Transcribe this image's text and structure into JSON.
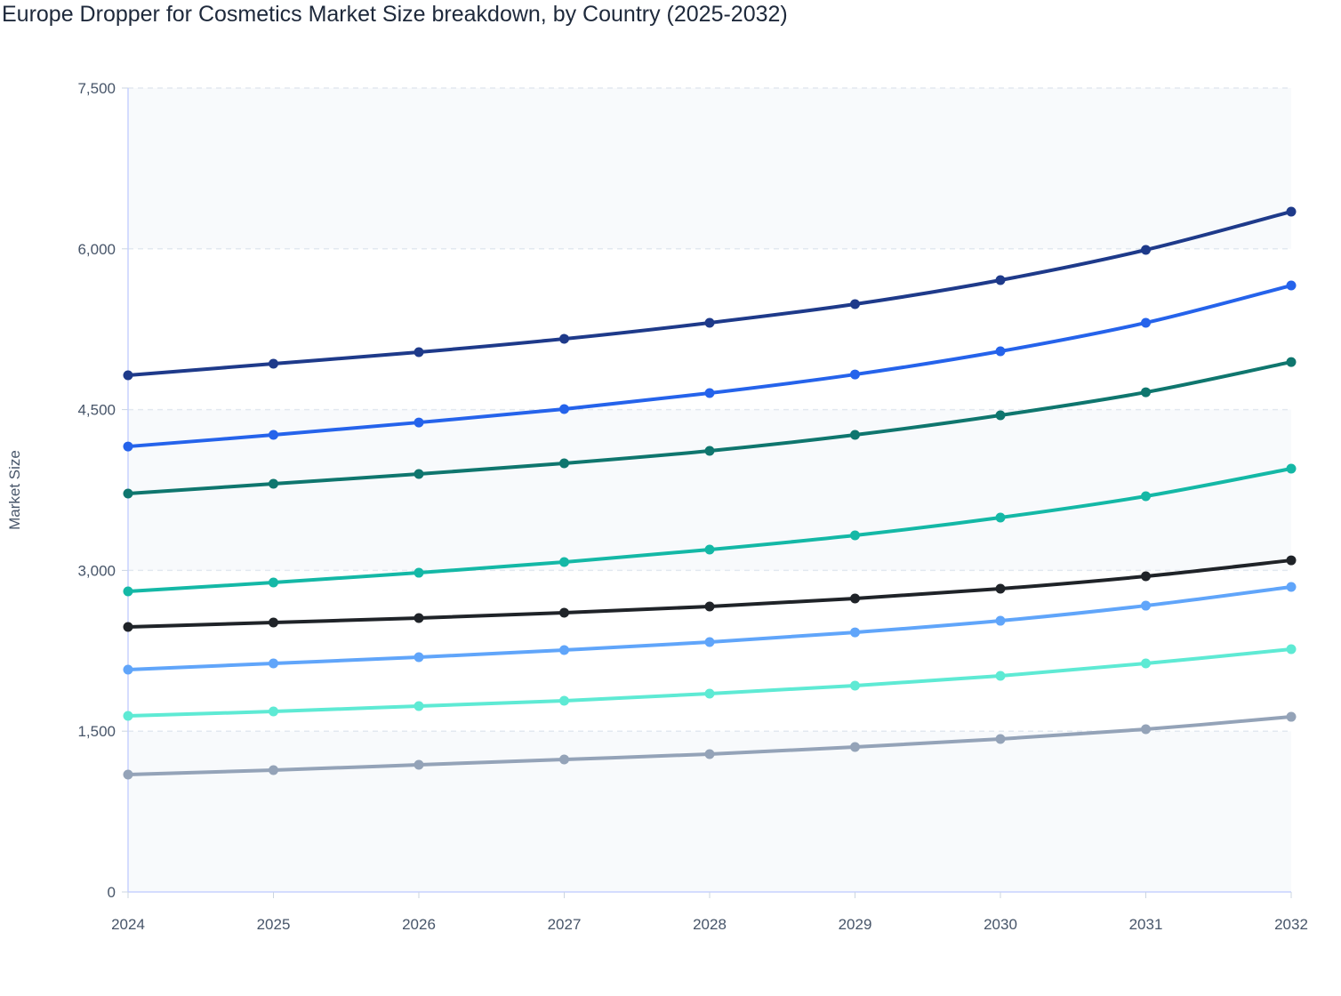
{
  "chart_data": {
    "type": "line",
    "title": "Europe Dropper for Cosmetics Market Size breakdown, by Country (2025-2032)",
    "xlabel": "",
    "ylabel": "Market Size",
    "x": [
      "2024",
      "2025",
      "2026",
      "2027",
      "2028",
      "2029",
      "2030",
      "2031",
      "2032"
    ],
    "ylim": [
      0,
      7500
    ],
    "yticks": [
      "0",
      "1,500",
      "3,000",
      "4,500",
      "6,000",
      "7,500"
    ],
    "ytick_values": [
      0,
      1500,
      3000,
      4500,
      6000,
      7500
    ],
    "grid": true,
    "legend": "none",
    "series": [
      {
        "color": "#1e3a8a",
        "values": [
          4820,
          4928,
          5036,
          5160,
          5310,
          5484,
          5708,
          5990,
          6347
        ]
      },
      {
        "color": "#2563eb",
        "values": [
          4156,
          4264,
          4380,
          4505,
          4654,
          4828,
          5044,
          5310,
          5658
        ]
      },
      {
        "color": "#0f766e",
        "values": [
          3717,
          3808,
          3899,
          3999,
          4115,
          4264,
          4447,
          4662,
          4944
        ]
      },
      {
        "color": "#14b8a6",
        "values": [
          2804,
          2887,
          2978,
          3078,
          3194,
          3327,
          3493,
          3692,
          3949
        ]
      },
      {
        "color": "#1f2328",
        "values": [
          2472,
          2514,
          2555,
          2605,
          2663,
          2738,
          2829,
          2945,
          3094
        ]
      },
      {
        "color": "#60a5fa",
        "values": [
          2074,
          2132,
          2190,
          2257,
          2331,
          2422,
          2530,
          2671,
          2846
        ]
      },
      {
        "color": "#5eead4",
        "values": [
          1643,
          1684,
          1734,
          1784,
          1850,
          1925,
          2016,
          2132,
          2265
        ]
      },
      {
        "color": "#94a3b8",
        "values": [
          1095,
          1137,
          1186,
          1236,
          1286,
          1352,
          1427,
          1518,
          1634
        ]
      }
    ]
  }
}
